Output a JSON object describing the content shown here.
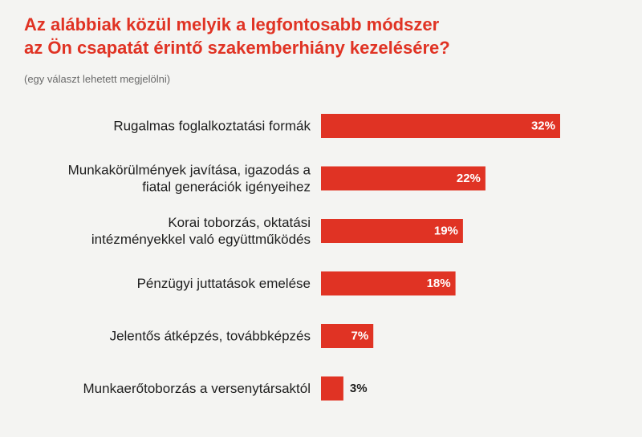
{
  "title_lines": [
    "Az alábbiak közül melyik a legfontosabb módszer",
    "az Ön csapatát érintő szakemberhiány kezelésére?"
  ],
  "subtitle": "(egy választ lehetett megjelölni)",
  "colors": {
    "bar": "#e03324",
    "title": "#e03324",
    "label": "#1e1e1e",
    "value_inside": "#ffffff",
    "value_outside": "#1e1e1e"
  },
  "chart_data": {
    "type": "bar",
    "orientation": "horizontal",
    "title": "Az alábbiak közül melyik a legfontosabb módszer az Ön csapatát érintő szakemberhiány kezelésére?",
    "subtitle": "(egy választ lehetett megjelölni)",
    "unit": "%",
    "categories": [
      [
        "Rugalmas foglalkoztatási formák"
      ],
      [
        "Munkakörülmények javítása, igazodás a",
        "fiatal generációk igényeihez"
      ],
      [
        "Korai toborzás, oktatási",
        "intézményekkel való együttműködés"
      ],
      [
        "Pénzügyi juttatások emelése"
      ],
      [
        "Jelentős átképzés, továbbképzés"
      ],
      [
        "Munkaerőtoborzás a versenytársaktól"
      ]
    ],
    "values": [
      32,
      22,
      19,
      18,
      7,
      3
    ],
    "value_labels": [
      "32%",
      "22%",
      "19%",
      "18%",
      "7%",
      "3%"
    ],
    "xlim": [
      0,
      32
    ],
    "grid": false,
    "legend": false
  }
}
